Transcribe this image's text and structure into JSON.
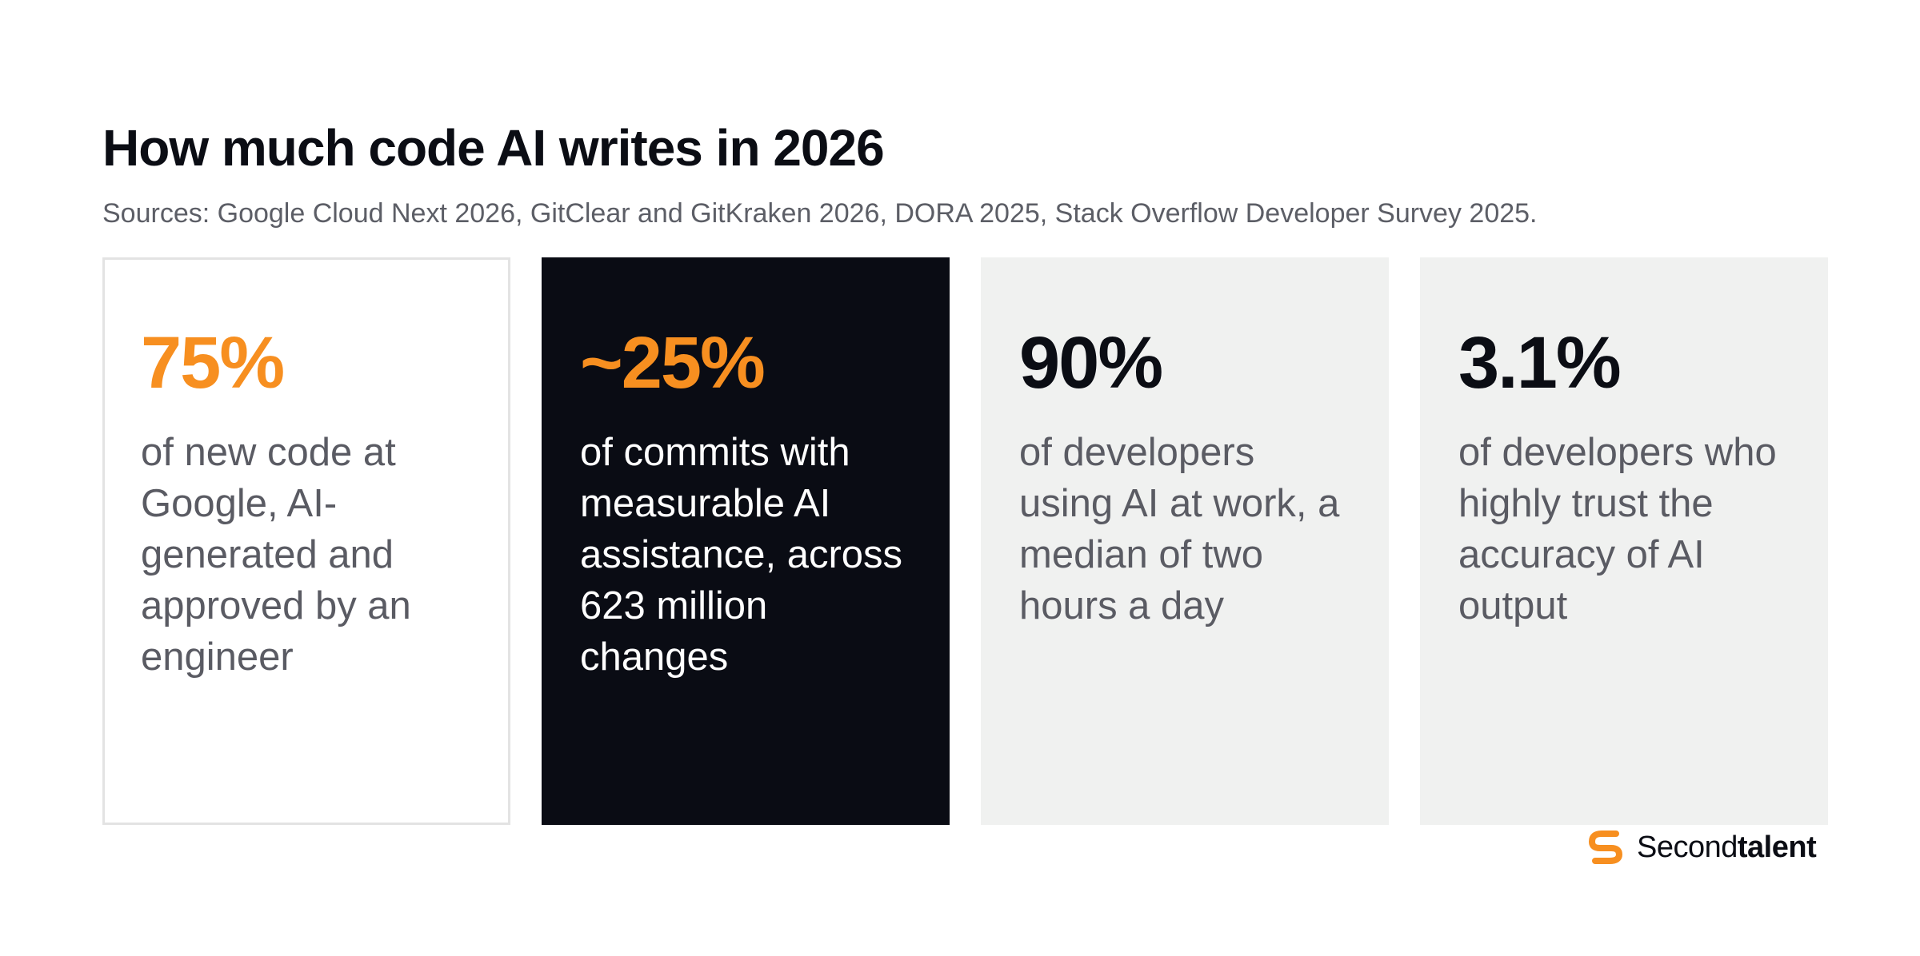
{
  "header": {
    "title": "How much code AI writes in 2026",
    "sources": "Sources: Google Cloud Next 2026, GitClear and GitKraken 2026, DORA 2025, Stack Overflow Developer Survey 2025."
  },
  "cards": [
    {
      "stat": "75%",
      "description": "of new code at Google, AI-generated and approved by an engineer",
      "background": "#ffffff",
      "stat_color": "#f78f20"
    },
    {
      "stat": "~25%",
      "description": "of commits with measurable AI assistance, across 623 million changes",
      "background": "#0a0c14",
      "stat_color": "#f78f20"
    },
    {
      "stat": "90%",
      "description": "of developers using AI at work, a median of two hours a day",
      "background": "#f0f1f0",
      "stat_color": "#0b0d14"
    },
    {
      "stat": "3.1%",
      "description": "of developers who highly trust the accuracy of AI output",
      "background": "#f0f1f0",
      "stat_color": "#0b0d14"
    }
  ],
  "brand": {
    "icon": "secondtalent-logo-icon",
    "name_regular": "Second",
    "name_bold": "talent",
    "accent_color": "#f78f20"
  }
}
